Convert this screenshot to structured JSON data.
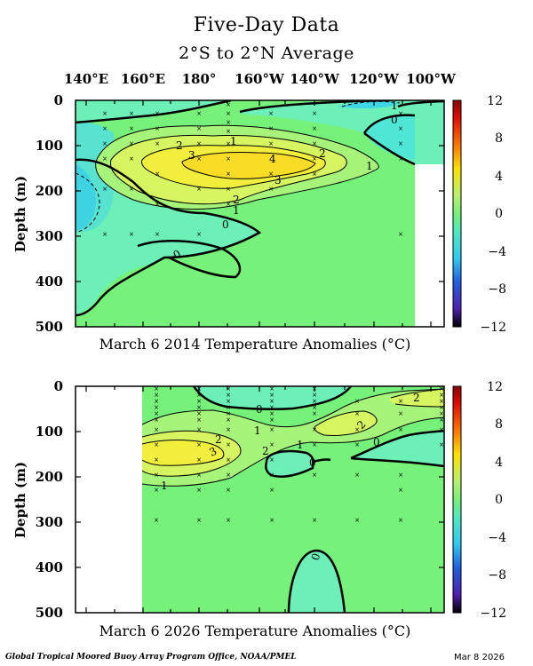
{
  "title": "Five-Day Data",
  "subtitle": "2°S to 2°N Average",
  "longitude_labels": [
    "140°E",
    "160°E",
    "180°",
    "160°W",
    "140°W",
    "120°W",
    "100°W"
  ],
  "footer": {
    "left": "Global Tropical Moored Buoy Array Program Office, NOAA/PMEL",
    "right": "Mar  8 2026"
  },
  "chart_data": [
    {
      "type": "heatmap",
      "caption": "March 6 2014 Temperature Anomalies (°C)",
      "ylabel": "Depth (m)",
      "y_ticks": [
        "0",
        "100",
        "200",
        "300",
        "400",
        "500"
      ],
      "ylim": [
        0,
        500
      ],
      "x_ticks_lon": [
        140,
        160,
        180,
        200,
        220,
        240,
        260
      ],
      "x_range_lon": [
        137,
        265
      ],
      "data_lon_range": [
        137,
        250
      ],
      "colorbar_labels": [
        "12",
        "8",
        "4",
        "0",
        "−4",
        "−8",
        "−12"
      ],
      "contour_labels": [
        "0",
        "0",
        "1",
        "2",
        "3",
        "4",
        "2",
        "3",
        "2",
        "1",
        "1",
        "0",
        "0",
        "1"
      ],
      "anomaly_range": [
        -12,
        12
      ],
      "anomaly_regions": [
        {
          "label": "warm core",
          "lon_range": [
            160,
            225
          ],
          "depth_range": [
            100,
            220
          ],
          "anomaly_max": 4
        },
        {
          "label": "western cool",
          "lon_range": [
            137,
            148
          ],
          "depth_range": [
            150,
            300
          ],
          "anomaly_min": -1
        },
        {
          "label": "eastern surface cool",
          "lon_range": [
            230,
            250
          ],
          "depth_range": [
            0,
            150
          ],
          "anomaly_min": -1
        }
      ]
    },
    {
      "type": "heatmap",
      "caption": "March 6 2026 Temperature Anomalies (°C)",
      "ylabel": "Depth (m)",
      "y_ticks": [
        "0",
        "100",
        "200",
        "300",
        "400",
        "500"
      ],
      "ylim": [
        0,
        500
      ],
      "x_ticks_lon": [
        140,
        160,
        180,
        200,
        220,
        240,
        260
      ],
      "x_range_lon": [
        137,
        265
      ],
      "data_lon_range": [
        159,
        265
      ],
      "colorbar_labels": [
        "12",
        "8",
        "4",
        "0",
        "−4",
        "−8",
        "−12"
      ],
      "contour_labels": [
        "0",
        "1",
        "2",
        "3",
        "1",
        "2",
        "0",
        "0",
        "2",
        "1",
        "0"
      ],
      "anomaly_range": [
        -12,
        12
      ],
      "anomaly_regions": [
        {
          "label": "warm layer",
          "lon_range": [
            159,
            200
          ],
          "depth_range": [
            100,
            200
          ],
          "anomaly_max": 3
        },
        {
          "label": "eastern warm",
          "lon_range": [
            215,
            265
          ],
          "depth_range": [
            0,
            120
          ],
          "anomaly_max": 2
        },
        {
          "label": "deep cool",
          "lon_range": [
            205,
            225
          ],
          "depth_range": [
            380,
            500
          ],
          "anomaly_min": -1
        }
      ]
    }
  ]
}
